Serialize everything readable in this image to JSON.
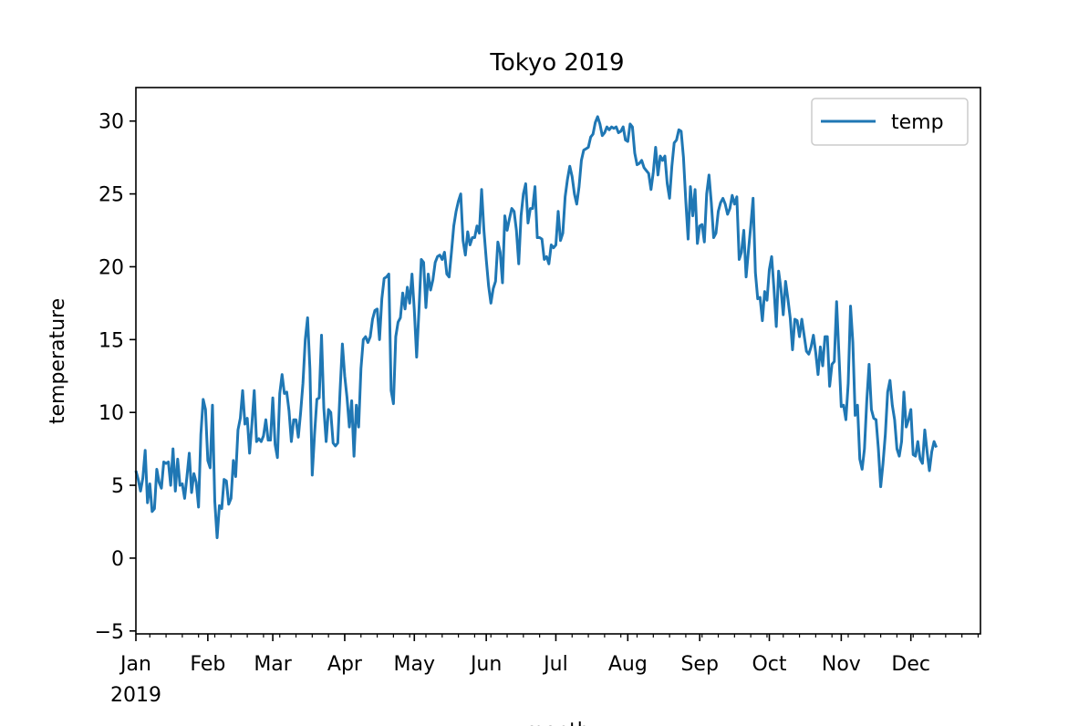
{
  "chart_data": {
    "type": "line",
    "title": "Tokyo 2019",
    "xlabel": "month",
    "ylabel": "temperature",
    "ylim": [
      -5.2,
      32.3
    ],
    "xlim": [
      "2019-01-01",
      "2019-12-31"
    ],
    "x_tick_labels": [
      "Jan",
      "Feb",
      "Mar",
      "Apr",
      "May",
      "Jun",
      "Jul",
      "Aug",
      "Sep",
      "Oct",
      "Nov",
      "Dec"
    ],
    "x_tick_dates": [
      "2019-01-01",
      "2019-02-01",
      "2019-03-01",
      "2019-04-01",
      "2019-05-01",
      "2019-06-01",
      "2019-07-01",
      "2019-08-01",
      "2019-09-01",
      "2019-10-01",
      "2019-11-01",
      "2019-12-01"
    ],
    "x_year_label": "2019",
    "y_ticks": [
      -5,
      0,
      5,
      10,
      15,
      20,
      25,
      30
    ],
    "grid": false,
    "legend": {
      "position": "top-right"
    },
    "series_color": "#1f77b4",
    "series": [
      {
        "name": "temp",
        "color": "#1f77b4",
        "daily_start": "2019-01-01",
        "values": [
          6.0,
          5.4,
          4.6,
          5.5,
          7.4,
          3.8,
          5.1,
          3.2,
          3.4,
          6.1,
          5.2,
          4.8,
          6.6,
          6.5,
          6.6,
          5.0,
          7.5,
          4.6,
          6.8,
          5.0,
          5.1,
          4.1,
          5.6,
          7.2,
          4.5,
          5.8,
          5.2,
          3.5,
          8.5,
          10.9,
          10.2,
          6.7,
          6.2,
          10.5,
          3.9,
          1.4,
          3.6,
          3.4,
          5.4,
          5.3,
          3.7,
          4.1,
          6.7,
          5.6,
          8.8,
          9.6,
          11.5,
          9.2,
          9.6,
          7.2,
          9.2,
          11.5,
          8.0,
          8.2,
          8.0,
          8.4,
          9.5,
          8.1,
          8.1,
          11.0,
          7.8,
          6.9,
          11.3,
          12.6,
          11.3,
          11.4,
          10.1,
          8.0,
          9.5,
          9.5,
          8.3,
          10.0,
          12.0,
          15.0,
          16.5,
          13.0,
          5.7,
          8.5,
          10.9,
          11.0,
          15.3,
          10.3,
          8.0,
          10.2,
          10.0,
          7.9,
          7.7,
          7.9,
          11.5,
          14.7,
          12.5,
          11.0,
          9.0,
          10.8,
          7.0,
          10.5,
          9.0,
          13.0,
          15.0,
          15.2,
          14.8,
          15.2,
          16.4,
          17.0,
          17.1,
          15.0,
          17.8,
          19.2,
          19.3,
          19.5,
          11.5,
          10.6,
          15.2,
          16.2,
          16.5,
          18.2,
          17.1,
          18.6,
          17.5,
          19.5,
          17.0,
          13.8,
          17.0,
          20.5,
          20.3,
          17.2,
          19.5,
          18.4,
          19.1,
          20.3,
          20.7,
          20.8,
          20.5,
          21.0,
          19.5,
          19.3,
          21.0,
          22.8,
          23.8,
          24.5,
          25.0,
          21.8,
          20.8,
          22.4,
          21.5,
          22.0,
          22.0,
          22.8,
          22.3,
          25.3,
          22.5,
          20.5,
          18.7,
          17.5,
          18.5,
          19.0,
          21.7,
          21.0,
          18.9,
          23.5,
          22.5,
          23.3,
          24.0,
          23.8,
          22.5,
          20.2,
          23.5,
          25.0,
          25.7,
          23.0,
          24.0,
          24.0,
          25.5,
          22.0,
          22.0,
          21.9,
          20.5,
          20.7,
          20.2,
          21.5,
          21.3,
          21.5,
          23.8,
          21.8,
          22.3,
          24.8,
          26.0,
          26.9,
          26.2,
          25.0,
          24.3,
          25.5,
          27.3,
          28.0,
          28.1,
          28.2,
          28.9,
          29.1,
          29.9,
          30.3,
          29.8,
          29.0,
          29.2,
          29.6,
          29.4,
          29.6,
          29.5,
          29.6,
          29.2,
          29.3,
          29.6,
          28.7,
          28.6,
          29.8,
          29.6,
          27.8,
          27.0,
          27.1,
          27.3,
          26.8,
          26.6,
          26.4,
          25.3,
          26.5,
          28.2,
          26.3,
          27.6,
          27.3,
          27.6,
          25.7,
          24.7,
          26.9,
          28.5,
          28.7,
          29.4,
          29.3,
          27.5,
          24.5,
          21.9,
          25.5,
          23.5,
          25.3,
          21.6,
          22.8,
          22.9,
          21.7,
          25.0,
          26.3,
          24.4,
          22.0,
          22.3,
          23.8,
          24.4,
          24.7,
          24.3,
          23.6,
          24.0,
          24.9,
          24.3,
          24.8,
          20.5,
          21.0,
          22.5,
          19.3,
          21.1,
          22.8,
          24.7,
          19.6,
          17.8,
          17.9,
          16.3,
          18.3,
          17.7,
          19.8,
          20.7,
          18.5,
          15.9,
          19.7,
          18.5,
          16.7,
          19.0,
          17.8,
          16.5,
          14.3,
          16.4,
          16.3,
          15.2,
          16.4,
          15.3,
          14.2,
          14.0,
          14.5,
          15.3,
          14.1,
          12.6,
          14.5,
          13.2,
          15.2,
          15.2,
          11.8,
          13.3,
          13.5,
          17.6,
          14.0,
          10.4,
          10.5,
          9.5,
          12.0,
          17.3,
          14.8,
          9.8,
          10.5,
          6.8,
          6.1,
          7.5,
          10.8,
          13.3,
          10.2,
          9.6,
          9.5,
          7.5,
          4.9,
          6.5,
          8.5,
          11.4,
          12.2,
          10.5,
          9.5,
          7.5,
          7.0,
          8.0,
          11.4,
          9.0,
          9.5,
          10.2,
          7.1,
          7.0,
          8.0,
          6.8,
          6.5,
          8.8,
          7.3,
          6.0,
          7.3,
          8.0,
          7.6
        ]
      }
    ]
  }
}
